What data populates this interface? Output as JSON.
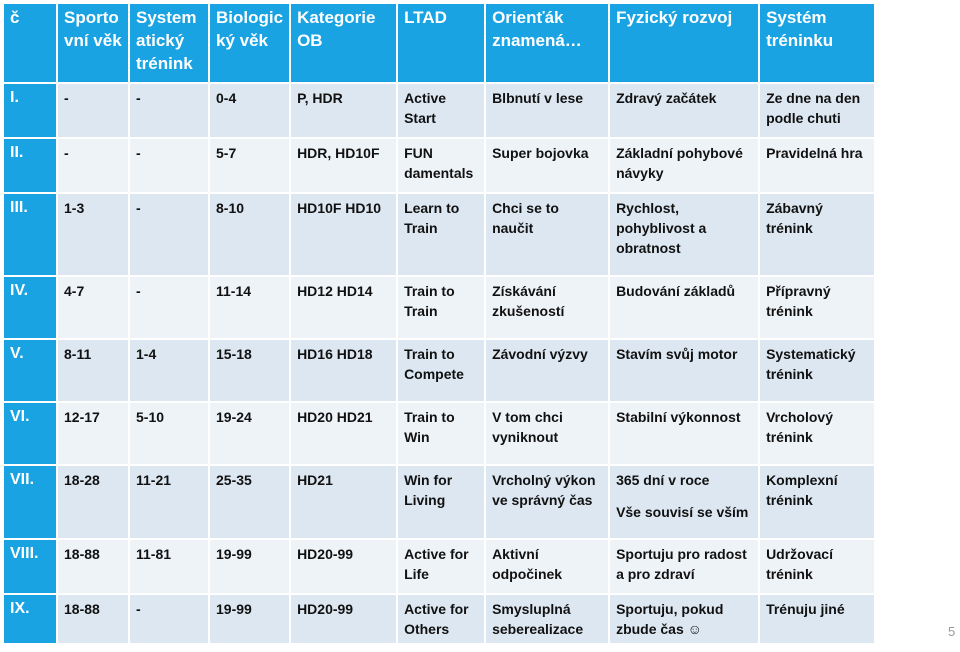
{
  "table": {
    "headers": [
      "č",
      "Sporto vní věk",
      "System atický trénink",
      "Biologic ký věk",
      "Kategorie OB",
      "LTAD",
      "Orienťák znamená…",
      "Fyzický rozvoj",
      "Systém tréninku"
    ],
    "rows": [
      [
        "I.",
        "-",
        "-",
        "0-4",
        "P, HDR",
        "Active Start",
        "Blbnutí v lese",
        "Zdravý začátek",
        "Ze dne na den podle chuti"
      ],
      [
        "II.",
        "-",
        "-",
        "5-7",
        "HDR, HD10F",
        "FUN damentals",
        "Super bojovka",
        "Základní pohybové návyky",
        "Pravidelná hra"
      ],
      [
        "III.",
        "1-3",
        "-",
        "8-10",
        "HD10F HD10",
        "Learn to Train",
        "Chci se to naučit",
        "Rychlost, pohyblivost a obratnost",
        "Zábavný trénink"
      ],
      [
        "IV.",
        "4-7",
        "-",
        "11-14",
        "HD12 HD14",
        "Train to Train",
        "Získávání zkušeností",
        "Budování základů",
        "Přípravný trénink"
      ],
      [
        "V.",
        "8-11",
        "1-4",
        "15-18",
        "HD16 HD18",
        "Train to Compete",
        "Závodní výzvy",
        "Stavím svůj motor",
        "Systematický trénink"
      ],
      [
        "VI.",
        "12-17",
        "5-10",
        "19-24",
        "HD20 HD21",
        "Train to Win",
        "V tom chci vyniknout",
        "Stabilní výkonnost",
        "Vrcholový trénink"
      ],
      [
        "VII.",
        "18-28",
        "11-21",
        "25-35",
        "HD21",
        "Win for Living",
        "Vrcholný výkon ve správný čas",
        "365 dní v roce",
        "Komplexní trénink"
      ],
      [
        "VIII.",
        "18-88",
        "11-81",
        "19-99",
        "HD20-99",
        "Active for Life",
        "Aktivní odpočinek",
        "Sportuju pro radost a pro zdraví",
        "Udržovací trénink"
      ],
      [
        "IX.",
        "18-88",
        "-",
        "19-99",
        "HD20-99",
        "Active for Others",
        "Smysluplná seberealizace",
        "Sportuju, pokud zbude čas ☺",
        "Trénuju jiné"
      ]
    ],
    "extra_line_row7_col7": "Vše souvisí se vším"
  },
  "slide_number": "5",
  "colors": {
    "header_bg": "#1aa3e3",
    "row_odd_bg": "#dde7f1",
    "row_even_bg": "#eef3f8"
  }
}
